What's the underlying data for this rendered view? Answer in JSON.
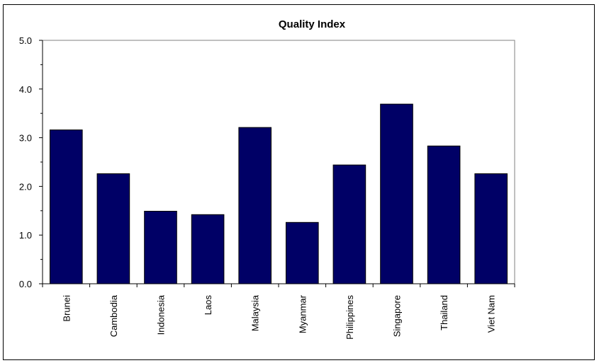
{
  "chart_data": {
    "type": "bar",
    "title": "Quality Index",
    "xlabel": "",
    "ylabel": "",
    "categories": [
      "Brunei",
      "Cambodia",
      "Indonesia",
      "Laos",
      "Malaysia",
      "Myanmar",
      "Philippines",
      "Singapore",
      "Thailand",
      "Viet Nam"
    ],
    "values": [
      3.16,
      2.26,
      1.49,
      1.42,
      3.21,
      1.26,
      2.44,
      3.69,
      2.83,
      2.26
    ],
    "ylim": [
      0,
      5
    ],
    "yticks": [
      "0.0",
      "1.0",
      "2.0",
      "3.0",
      "4.0",
      "5.0"
    ],
    "grid": false,
    "legend": "none",
    "colors": {
      "bar": "#000066",
      "bar_outline": "#000000",
      "axis": "#000000",
      "background": "#ffffff"
    }
  }
}
